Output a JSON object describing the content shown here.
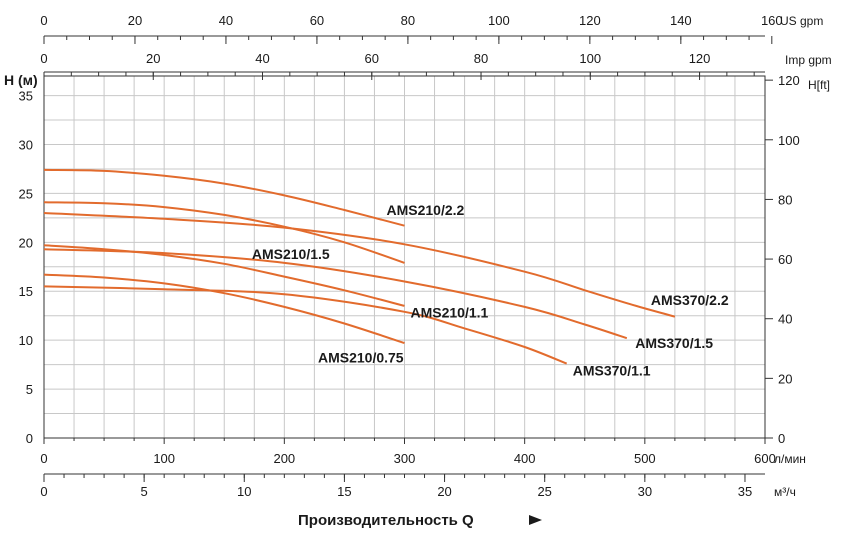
{
  "chart_data": {
    "type": "line",
    "xlabel": "Производительность Q",
    "ylabel": "H (м)",
    "xlim": [
      0,
      600
    ],
    "ylim": [
      0,
      37
    ],
    "grid": true,
    "x_unit": "л/мин",
    "x_ticks": [
      "0",
      "100",
      "200",
      "300",
      "400",
      "500",
      "600"
    ],
    "y_ticks": [
      "0",
      "5",
      "10",
      "15",
      "20",
      "25",
      "30",
      "35"
    ],
    "right_axis": {
      "unit": "H[ft]",
      "ticks": [
        "0",
        "20",
        "40",
        "60",
        "80",
        "100",
        "120"
      ]
    },
    "secondary_x_axes": [
      {
        "unit": "US gpm",
        "position": "top",
        "ticks": [
          "0",
          "20",
          "40",
          "60",
          "80",
          "100",
          "120",
          "140",
          "160"
        ]
      },
      {
        "unit": "Imp gpm",
        "position": "top",
        "ticks": [
          "0",
          "20",
          "40",
          "60",
          "80",
          "100",
          "120"
        ]
      },
      {
        "unit": "м³/ч",
        "position": "bottom",
        "ticks": [
          "0",
          "5",
          "10",
          "15",
          "20",
          "25",
          "30",
          "35"
        ]
      }
    ],
    "series": [
      {
        "name": "AMS210/2.2",
        "color": "#e26b2d",
        "label_pos": [
          285,
          22.8
        ],
        "x": [
          0,
          50,
          100,
          150,
          200,
          250,
          300
        ],
        "y": [
          27.4,
          27.3,
          26.8,
          26.0,
          24.8,
          23.3,
          21.7
        ]
      },
      {
        "name": "AMS210/1.5",
        "color": "#e26b2d",
        "label_pos": [
          173,
          18.3
        ],
        "x": [
          0,
          50,
          100,
          150,
          200,
          250,
          300
        ],
        "y": [
          24.1,
          24.0,
          23.6,
          22.8,
          21.6,
          20.0,
          17.9
        ]
      },
      {
        "name": "AMS210/1.1",
        "color": "#e26b2d",
        "label_pos": [
          305,
          12.3
        ],
        "x": [
          0,
          50,
          100,
          150,
          200,
          250,
          300
        ],
        "y": [
          19.7,
          19.3,
          18.7,
          17.8,
          16.5,
          15.1,
          13.5
        ]
      },
      {
        "name": "AMS210/0.75",
        "color": "#e26b2d",
        "label_pos": [
          228,
          7.7
        ],
        "x": [
          0,
          50,
          100,
          150,
          200,
          250,
          300
        ],
        "y": [
          16.7,
          16.4,
          15.8,
          14.8,
          13.4,
          11.7,
          9.7
        ]
      },
      {
        "name": "AMS370/2.2",
        "color": "#e26b2d",
        "label_pos": [
          505,
          13.6
        ],
        "x": [
          0,
          100,
          200,
          300,
          400,
          450,
          490,
          525
        ],
        "y": [
          23.0,
          22.4,
          21.5,
          19.8,
          17.0,
          15.1,
          13.6,
          12.4
        ]
      },
      {
        "name": "AMS370/1.5",
        "color": "#e26b2d",
        "label_pos": [
          492,
          9.2
        ],
        "x": [
          0,
          100,
          200,
          300,
          400,
          450,
          485
        ],
        "y": [
          19.3,
          18.9,
          17.9,
          16.0,
          13.4,
          11.6,
          10.2
        ]
      },
      {
        "name": "AMS370/1.1",
        "color": "#e26b2d",
        "label_pos": [
          440,
          6.4
        ],
        "x": [
          0,
          100,
          200,
          300,
          350,
          400,
          435
        ],
        "y": [
          15.5,
          15.2,
          14.7,
          12.9,
          11.2,
          9.3,
          7.6
        ]
      }
    ]
  }
}
